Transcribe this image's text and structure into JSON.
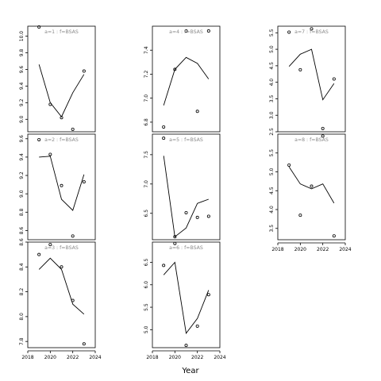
{
  "xlabel": "Year",
  "chart_data": [
    {
      "type": "line",
      "label": "a=1  :  f=BSAS",
      "xlim": [
        2018,
        2024
      ],
      "ylim": [
        8.85,
        10.12
      ],
      "yticks": [
        9.0,
        9.2,
        9.4,
        9.6,
        9.8,
        10.0
      ],
      "ytick_labels": [
        "9.0",
        "9.2",
        "9.4",
        "9.6",
        "9.8",
        "10.0"
      ],
      "x": [
        2019,
        2020,
        2021,
        2022,
        2023
      ],
      "fitted": [
        9.66,
        9.2,
        9.03,
        9.32,
        9.54
      ],
      "observed": [
        10.11,
        9.18,
        9.02,
        8.88,
        9.58
      ]
    },
    {
      "type": "line",
      "label": "a=2  :  f=BSAS",
      "xlim": [
        2018,
        2024
      ],
      "ylim": [
        8.5,
        9.65
      ],
      "yticks": [
        8.6,
        8.8,
        9.0,
        9.2,
        9.4,
        9.6
      ],
      "ytick_labels": [
        "8.6",
        "8.8",
        "9.0",
        "9.2",
        "9.4",
        "9.6"
      ],
      "x": [
        2019,
        2020,
        2021,
        2022,
        2023
      ],
      "fitted": [
        9.4,
        9.41,
        8.94,
        8.82,
        9.21
      ],
      "observed": [
        9.59,
        9.43,
        9.09,
        8.54,
        9.13
      ]
    },
    {
      "type": "line",
      "label": "a=3  :  f=BSAS",
      "xlim": [
        2018,
        2024
      ],
      "ylim": [
        7.75,
        8.6
      ],
      "yticks": [
        7.8,
        8.0,
        8.2,
        8.4,
        8.6
      ],
      "ytick_labels": [
        "7.8",
        "8.0",
        "8.2",
        "8.4",
        "8.6"
      ],
      "x": [
        2019,
        2020,
        2021,
        2022,
        2023
      ],
      "fitted": [
        8.38,
        8.47,
        8.38,
        8.1,
        8.02
      ],
      "observed": [
        8.5,
        8.58,
        8.4,
        8.13,
        7.78
      ]
    },
    {
      "type": "line",
      "label": "a=4  :  f=BSAS",
      "xlim": [
        2018,
        2024
      ],
      "ylim": [
        6.72,
        7.6
      ],
      "yticks": [
        6.8,
        7.0,
        7.2,
        7.4
      ],
      "ytick_labels": [
        "6.8",
        "7.0",
        "7.2",
        "7.4"
      ],
      "x": [
        2019,
        2020,
        2021,
        2022,
        2023
      ],
      "fitted": [
        6.94,
        7.24,
        7.34,
        7.29,
        7.16
      ],
      "observed": [
        6.76,
        7.24,
        7.56,
        6.89,
        7.56
      ]
    },
    {
      "type": "line",
      "label": "a=5  :  f=BSAS",
      "xlim": [
        2018,
        2024
      ],
      "ylim": [
        6.05,
        7.85
      ],
      "yticks": [
        6.5,
        7.0,
        7.5
      ],
      "ytick_labels": [
        "6.5",
        "7.0",
        "7.5"
      ],
      "x": [
        2019,
        2020,
        2021,
        2022,
        2023
      ],
      "fitted": [
        7.48,
        6.1,
        6.25,
        6.67,
        6.74
      ],
      "observed": [
        7.78,
        6.1,
        6.51,
        6.43,
        6.45
      ]
    },
    {
      "type": "line",
      "label": "a=6  :  f=BSAS",
      "xlim": [
        2018,
        2024
      ],
      "ylim": [
        4.6,
        6.95
      ],
      "yticks": [
        5.0,
        5.5,
        6.0,
        6.5
      ],
      "ytick_labels": [
        "5.0",
        "5.5",
        "6.0",
        "6.5"
      ],
      "x": [
        2019,
        2020,
        2021,
        2022,
        2023
      ],
      "fitted": [
        6.22,
        6.5,
        4.92,
        5.25,
        5.88
      ],
      "observed": [
        6.43,
        6.92,
        4.65,
        5.08,
        5.78
      ]
    },
    {
      "type": "line",
      "label": "a=7  :  f=BSAS",
      "xlim": [
        2018,
        2024
      ],
      "ylim": [
        2.5,
        5.7
      ],
      "yticks": [
        2.5,
        3.0,
        3.5,
        4.0,
        4.5,
        5.0,
        5.5
      ],
      "ytick_labels": [
        "2.5",
        "3.0",
        "3.5",
        "4.0",
        "4.5",
        "5.0",
        "5.5"
      ],
      "x": [
        2019,
        2020,
        2021,
        2022,
        2023
      ],
      "fitted": [
        4.48,
        4.85,
        5.0,
        3.47,
        3.96
      ],
      "observed": [
        5.52,
        4.38,
        5.62,
        2.6,
        4.1
      ]
    },
    {
      "type": "line",
      "label": "a=8  :  f=BSAS",
      "xlim": [
        2018,
        2024
      ],
      "ylim": [
        3.2,
        6.0
      ],
      "yticks": [
        3.5,
        4.0,
        4.5,
        5.0,
        5.5
      ],
      "ytick_labels": [
        "3.5",
        "4.0",
        "4.5",
        "5.0",
        "5.5"
      ],
      "xticks": [
        2018,
        2020,
        2022,
        2024
      ],
      "xtick_labels": [
        "2018",
        "2020",
        "2022",
        "2024"
      ],
      "x": [
        2019,
        2020,
        2021,
        2022,
        2023
      ],
      "fitted": [
        5.13,
        4.68,
        4.55,
        4.68,
        4.17
      ],
      "observed": [
        5.18,
        3.85,
        4.62,
        5.95,
        3.3
      ]
    }
  ],
  "bottom_axes": {
    "xticks": [
      2018,
      2020,
      2022,
      2024
    ],
    "xtick_labels": [
      "2018",
      "2020",
      "2022",
      "2024"
    ]
  }
}
